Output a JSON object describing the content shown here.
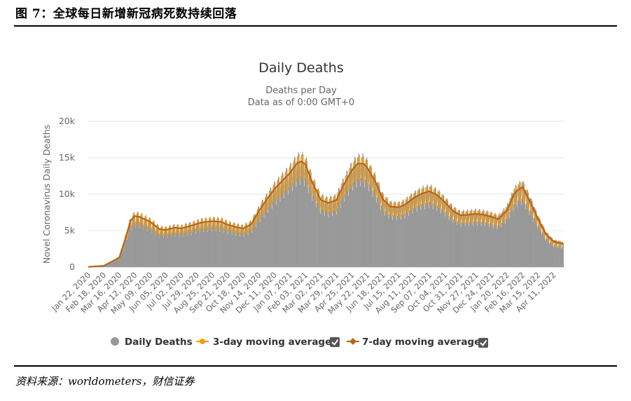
{
  "figure": {
    "title": "图 7：全球每日新增新冠病死数持续回落",
    "source": "资料来源：worldometers，财信证券"
  },
  "colors": {
    "daily": "#999999",
    "ma3": "#f39c12",
    "ma7": "#b5651d",
    "grid": "#e6e6e6",
    "axis_text": "#666666",
    "title_text": "#333333",
    "checkbox": "#555555"
  },
  "chart_data": {
    "type": "bar",
    "title": "Daily Deaths",
    "subtitle_lines": [
      "Deaths per Day",
      "Data as of 0:00 GMT+0"
    ],
    "ylabel": "Novel Coronavirus Daily Deaths",
    "ylim": [
      0,
      20000
    ],
    "yticks": [
      0,
      5000,
      10000,
      15000,
      20000
    ],
    "ytick_labels": [
      "0",
      "5k",
      "10k",
      "15k",
      "20k"
    ],
    "x_start_date": "2020-01-22",
    "x_end_date": "2022-04-30",
    "grid": true,
    "xtick_labels": [
      "Jan 22, 2020",
      "Feb 18, 2020",
      "Mar 16, 2020",
      "Apr 12, 2020",
      "May 09, 2020",
      "Jun 05, 2020",
      "Jul 02, 2020",
      "Jul 29, 2020",
      "Aug 25, 2020",
      "Sep 21, 2020",
      "Oct 18, 2020",
      "Nov 14, 2020",
      "Dec 11, 2020",
      "Jan 07, 2021",
      "Feb 03, 2021",
      "Mar 02, 2021",
      "Mar 29, 2021",
      "Apr 25, 2021",
      "May 22, 2021",
      "Jun 18, 2021",
      "Jul 15, 2021",
      "Aug 11, 2021",
      "Sep 07, 2021",
      "Oct 04, 2021",
      "Oct 31, 2021",
      "Nov 27, 2021",
      "Dec 24, 2021",
      "Jan 20, 2022",
      "Feb 16, 2022",
      "Mar 15, 2022",
      "Apr 11, 2022"
    ],
    "series": [
      {
        "name": "7-day moving average",
        "x": [
          "2020-01-22",
          "2020-02-18",
          "2020-03-16",
          "2020-03-25",
          "2020-04-05",
          "2020-04-12",
          "2020-04-20",
          "2020-05-09",
          "2020-05-25",
          "2020-06-05",
          "2020-06-20",
          "2020-07-02",
          "2020-07-20",
          "2020-08-05",
          "2020-08-25",
          "2020-09-10",
          "2020-09-21",
          "2020-10-05",
          "2020-10-18",
          "2020-11-01",
          "2020-11-14",
          "2020-11-28",
          "2020-12-11",
          "2020-12-22",
          "2021-01-07",
          "2021-01-20",
          "2021-01-27",
          "2021-02-03",
          "2021-02-15",
          "2021-03-02",
          "2021-03-15",
          "2021-03-29",
          "2021-04-10",
          "2021-04-25",
          "2021-05-05",
          "2021-05-15",
          "2021-05-22",
          "2021-06-05",
          "2021-06-18",
          "2021-07-01",
          "2021-07-15",
          "2021-07-25",
          "2021-08-11",
          "2021-08-25",
          "2021-09-07",
          "2021-09-20",
          "2021-10-04",
          "2021-10-18",
          "2021-10-31",
          "2021-11-15",
          "2021-11-27",
          "2021-12-10",
          "2021-12-24",
          "2022-01-05",
          "2022-01-20",
          "2022-02-01",
          "2022-02-08",
          "2022-02-16",
          "2022-03-01",
          "2022-03-15",
          "2022-03-29",
          "2022-04-11",
          "2022-04-28"
        ],
        "values": [
          30,
          180,
          1300,
          3500,
          6400,
          7000,
          6900,
          6200,
          5200,
          5100,
          5400,
          5300,
          5700,
          6100,
          6300,
          6200,
          5800,
          5500,
          5300,
          5900,
          7700,
          9300,
          10700,
          11600,
          12900,
          14300,
          14500,
          14100,
          11600,
          9200,
          8800,
          9200,
          11200,
          13300,
          14200,
          14200,
          13600,
          11700,
          9300,
          8300,
          8200,
          8500,
          9500,
          10100,
          10400,
          9900,
          8900,
          7700,
          7100,
          7200,
          7300,
          7200,
          6900,
          6600,
          7800,
          10000,
          10600,
          11000,
          9000,
          6600,
          4500,
          3500,
          3200
        ]
      }
    ]
  },
  "legend": {
    "items": [
      {
        "label": "Daily Deaths",
        "symbol": "circle"
      },
      {
        "label": "3-day moving average",
        "symbol": "line-dot"
      },
      {
        "label": "7-day moving average",
        "symbol": "line-diamond"
      }
    ]
  }
}
